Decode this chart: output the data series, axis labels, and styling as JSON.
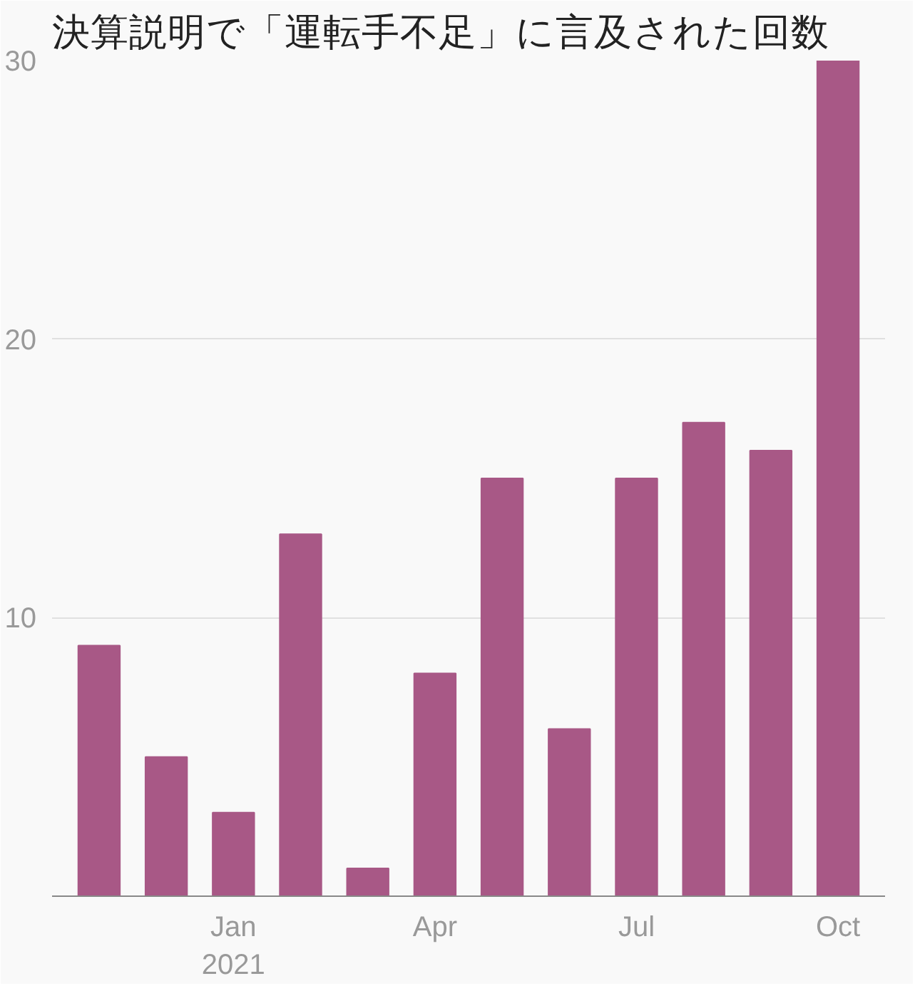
{
  "chart_data": {
    "type": "bar",
    "title": "決算説明で「運転手不足」に言及された回数",
    "categories": [
      null,
      null,
      "Jan\n2021",
      null,
      null,
      "Apr",
      null,
      null,
      "Jul",
      null,
      null,
      "Oct"
    ],
    "values": [
      9,
      5,
      3,
      13,
      1,
      8,
      15,
      6,
      15,
      17,
      16,
      30
    ],
    "color": "#a85886",
    "ylim": [
      0,
      30
    ],
    "yticks": [
      10,
      20,
      30
    ],
    "grid": "y"
  }
}
